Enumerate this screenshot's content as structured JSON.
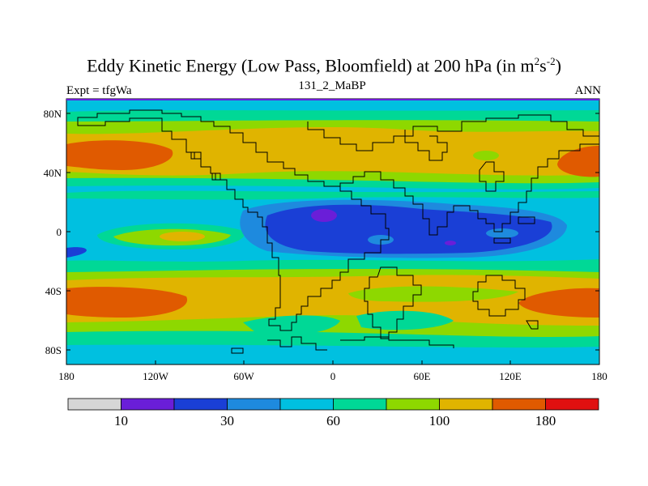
{
  "title": {
    "main": "Eddy Kinetic Energy (Low Pass, Bloomfield) at 200 hPa (in m",
    "sup1": "2",
    "mid": "s",
    "sup2": "-2",
    "end": ")"
  },
  "left_label": "Expt = tfgWa",
  "center_label": "131_2_MaBP",
  "right_label": "ANN",
  "lat_labels": [
    "80N",
    "40N",
    "0",
    "40S",
    "80S"
  ],
  "lon_labels": [
    "180",
    "120W",
    "60W",
    "0",
    "60E",
    "120E",
    "180"
  ],
  "colorbar": {
    "colors": [
      "#d6d6d6",
      "#6a1ed8",
      "#1a3fd6",
      "#1e8ade",
      "#00c0e0",
      "#00d896",
      "#8ed800",
      "#e0b400",
      "#e05a00",
      "#e01010"
    ],
    "labels": [
      "10",
      "30",
      "60",
      "100",
      "180"
    ]
  },
  "colors": {
    "ocean_base": "#00c0e0",
    "continent_outline": "#000000",
    "frame_top": "#6a1ed8"
  }
}
